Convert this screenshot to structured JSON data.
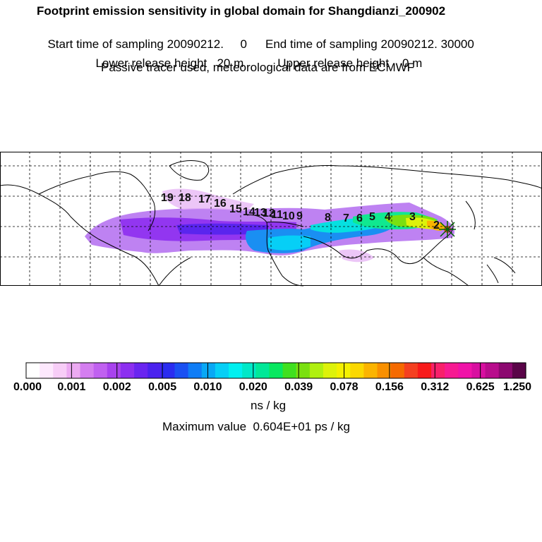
{
  "header": {
    "title": "Footprint emission sensitivity in global domain for Shangdianzi_200902",
    "start_label": "Start time of sampling 20090212.     0",
    "end_label": "End time of sampling 20090212. 30000",
    "lower_label": "Lower release height   20 m",
    "upper_label": "Upper release height    0 m",
    "tracer_note": "Passive tracer used, meteorological data are from ECMWF"
  },
  "colors": {
    "scale": [
      "#ffffff",
      "#fde8fd",
      "#f7cdf7",
      "#ecaaf2",
      "#d47ef0",
      "#c061f0",
      "#a842ee",
      "#8c2ff0",
      "#6a25f0",
      "#4b22ee",
      "#2a2cf0",
      "#1a50f2",
      "#0f7df6",
      "#08a8f5",
      "#06cff6",
      "#00f0f0",
      "#00e8c8",
      "#00e898",
      "#08e860",
      "#40e020",
      "#7ae010",
      "#b0f010",
      "#ddf20a",
      "#f4f000",
      "#fbd800",
      "#fbb400",
      "#f99000",
      "#f56a00",
      "#f44020",
      "#f81a1a",
      "#f8206a",
      "#f71a92",
      "#f013a8",
      "#d80fa0",
      "#b80c8c",
      "#8c0870",
      "#5a0448"
    ]
  },
  "chart_data": {
    "type": "heatmap",
    "title": "Footprint emission sensitivity in global domain for Shangdianzi_200902",
    "receptor": "Shangdianzi",
    "unit": "ns / kg",
    "max_value_text": "Maximum value  0.604E+01 ps / kg",
    "colorbar_ticks": [
      "0.000",
      "0.001",
      "0.002",
      "0.005",
      "0.010",
      "0.020",
      "0.039",
      "0.078",
      "0.156",
      "0.312",
      "0.625",
      "1.250"
    ],
    "back_trajectory_labels": [
      "2",
      "3",
      "4",
      "5",
      "6",
      "7",
      "8",
      "9",
      "10",
      "11",
      "12",
      "13",
      "14",
      "15",
      "16",
      "17",
      "18",
      "19"
    ],
    "extent": {
      "lon": [
        -180,
        180
      ],
      "lat": [
        -20,
        70
      ]
    },
    "grid": true
  }
}
